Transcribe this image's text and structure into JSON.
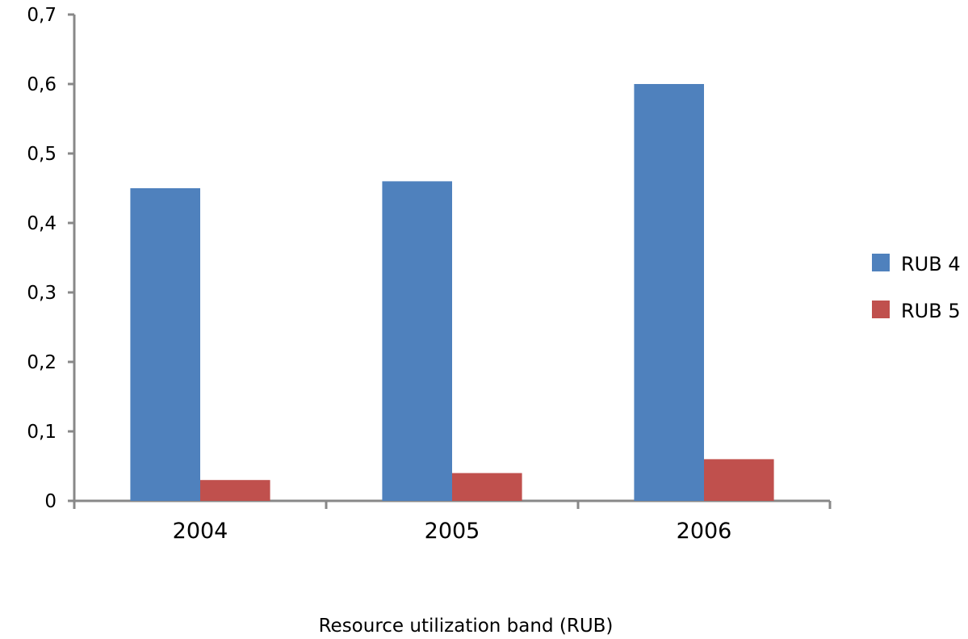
{
  "chart_data": {
    "type": "bar",
    "categories": [
      "2004",
      "2005",
      "2006"
    ],
    "series": [
      {
        "name": "RUB 4",
        "values": [
          0.45,
          0.46,
          0.6
        ],
        "color": "#4f81bd"
      },
      {
        "name": "RUB 5",
        "values": [
          0.03,
          0.04,
          0.06
        ],
        "color": "#c0504d"
      }
    ],
    "xlabel": "Resource utilization band (RUB)",
    "ylabel": "",
    "ylim": [
      0,
      0.7
    ],
    "yticks": [
      {
        "value": 0,
        "label": "0"
      },
      {
        "value": 0.1,
        "label": "0,1"
      },
      {
        "value": 0.2,
        "label": "0,2"
      },
      {
        "value": 0.3,
        "label": "0,3"
      },
      {
        "value": 0.4,
        "label": "0,4"
      },
      {
        "value": 0.5,
        "label": "0,5"
      },
      {
        "value": 0.6,
        "label": "0,6"
      },
      {
        "value": 0.7,
        "label": "0,7"
      }
    ],
    "grid": false,
    "legend_position": "right",
    "axis_color": "#888888"
  }
}
